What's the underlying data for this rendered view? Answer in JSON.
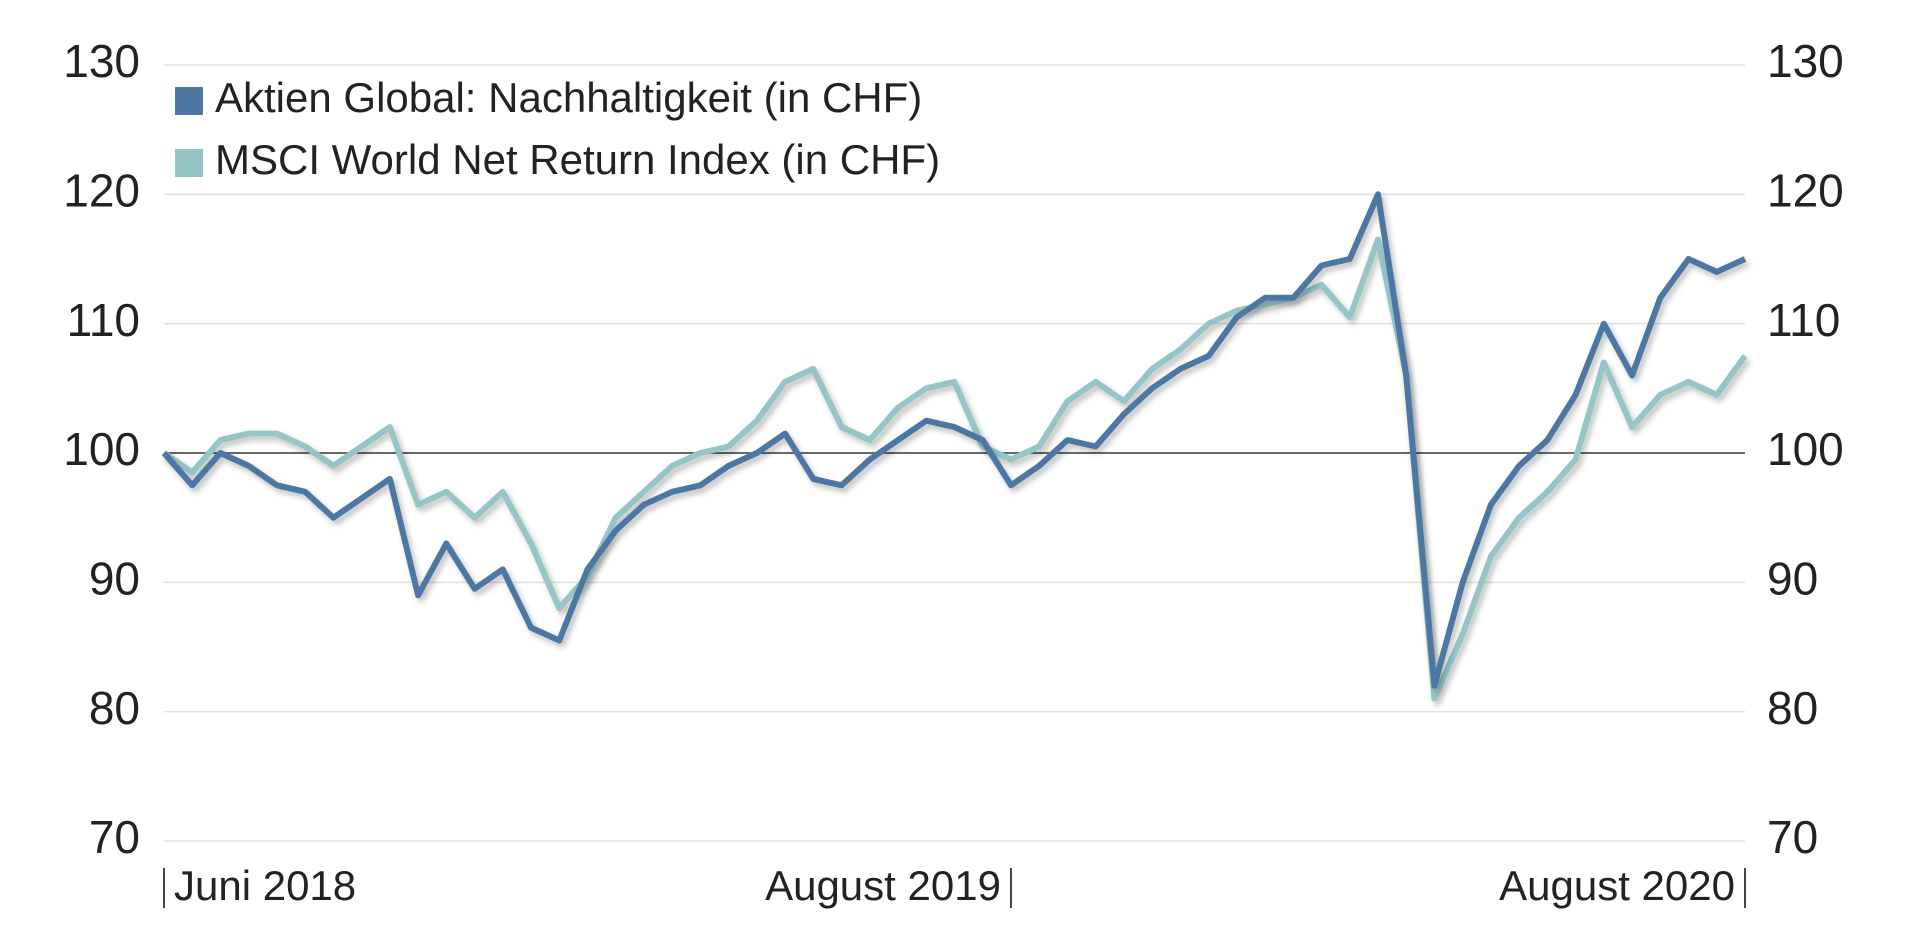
{
  "chart_data": {
    "type": "line",
    "series": [
      {
        "name": "Aktien Global: Nachhaltigkeit (in CHF)",
        "color": "#4e77a3",
        "values": [
          100,
          97.5,
          100,
          99,
          97.5,
          97,
          95,
          96.5,
          98,
          89,
          93,
          89.5,
          91,
          86.5,
          85.5,
          91,
          94,
          96,
          97,
          97.5,
          99,
          100,
          101.5,
          98,
          97.5,
          99.5,
          101,
          102.5,
          102,
          101,
          97.5,
          99,
          101,
          100.5,
          103,
          105,
          106.5,
          107.5,
          110.5,
          112,
          112,
          114.5,
          115,
          120,
          106,
          82,
          90,
          96,
          99,
          101,
          104.5,
          110,
          106,
          112,
          115,
          114,
          115
        ]
      },
      {
        "name": "MSCI World Net Return Index (in CHF)",
        "color": "#96c5c8",
        "values": [
          100,
          98.5,
          101,
          101.5,
          101.5,
          100.5,
          99,
          100.5,
          102,
          96,
          97,
          95,
          97,
          93,
          88,
          90.5,
          95,
          97,
          99,
          100,
          100.5,
          102.5,
          105.5,
          106.5,
          102,
          101,
          103.5,
          105,
          105.5,
          100.5,
          99.5,
          100.5,
          104,
          105.5,
          104,
          106.5,
          108,
          110,
          111,
          111.5,
          112,
          113,
          110.5,
          116.5,
          106,
          81,
          86,
          92,
          95,
          97,
          99.5,
          107,
          102,
          104.5,
          105.5,
          104.5,
          107.5
        ]
      }
    ],
    "xlim": [
      0,
      56
    ],
    "xticks": [
      {
        "value": 0,
        "label": "Juni 2018"
      },
      {
        "value": 30,
        "label": "August 2019"
      },
      {
        "value": 56,
        "label": "August 2020"
      }
    ],
    "ylim": [
      70,
      130
    ],
    "yticks": [
      70,
      80,
      90,
      100,
      110,
      120,
      130
    ],
    "y2lim": [
      70,
      130
    ],
    "y2ticks": [
      70,
      80,
      90,
      100,
      110,
      120,
      130
    ],
    "reference_line": 100,
    "grid": true,
    "legend": "top-left"
  }
}
